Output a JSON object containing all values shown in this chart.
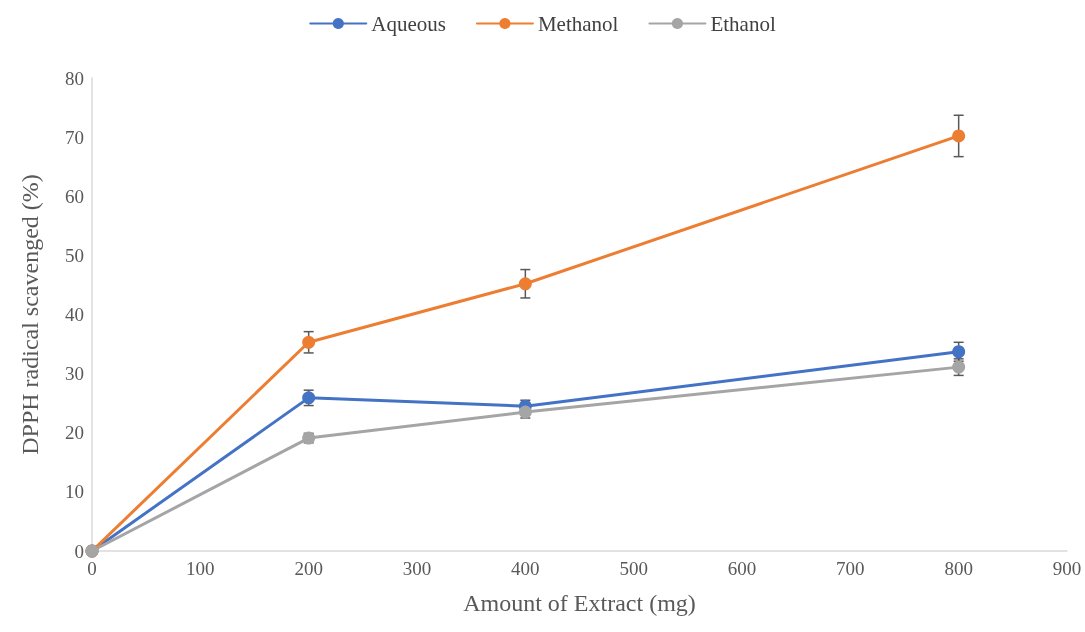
{
  "chart_data": {
    "type": "line",
    "xlabel": "Amount of Extract (mg)",
    "ylabel": "DPPH radical scavenged (%)",
    "x": [
      0,
      200,
      400,
      800
    ],
    "series": [
      {
        "name": "Aqueous",
        "color": "#4472c4",
        "values": [
          0,
          25.9,
          24.5,
          33.7
        ],
        "errors": [
          null,
          1.3,
          1.0,
          1.6
        ]
      },
      {
        "name": "Methanol",
        "color": "#ed7d31",
        "values": [
          0,
          35.3,
          45.2,
          70.2
        ],
        "errors": [
          null,
          1.8,
          2.4,
          3.5
        ]
      },
      {
        "name": "Ethanol",
        "color": "#a5a5a5",
        "values": [
          0,
          19.1,
          23.5,
          31.1
        ],
        "errors": [
          null,
          0.8,
          1.0,
          1.4
        ]
      }
    ],
    "xlim": [
      0,
      900
    ],
    "xticks": [
      0,
      100,
      200,
      300,
      400,
      500,
      600,
      700,
      800,
      900
    ],
    "ylim": [
      0,
      80
    ],
    "yticks": [
      0,
      10,
      20,
      30,
      40,
      50,
      60,
      70,
      80
    ],
    "grid": false,
    "legend": "top",
    "marker": "circle",
    "line_style": "solid"
  }
}
